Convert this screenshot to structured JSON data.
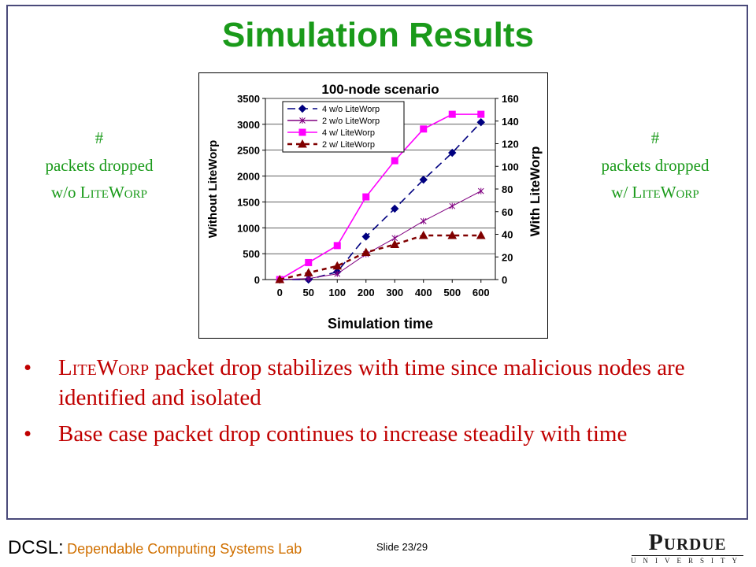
{
  "slide": {
    "title": "Simulation Results",
    "left_label": {
      "line1": "#",
      "line2": "packets dropped",
      "line3_prefix": "w/o ",
      "line3_sc": "LiteWorp"
    },
    "right_label": {
      "line1": "#",
      "line2": "packets dropped",
      "line3_prefix": "w/ ",
      "line3_sc": "LiteWorp"
    },
    "bullets": [
      {
        "sc": "LiteWorp",
        "text": " packet drop stabilizes with time since malicious nodes are identified and isolated"
      },
      {
        "sc": "",
        "text": "Base case packet drop continues to increase steadily with time"
      }
    ],
    "footer": {
      "abbr": "DCSL:",
      "full": "Dependable Computing Systems Lab",
      "slide_number": "Slide 23/29",
      "logo_word": "Purdue",
      "logo_sub": "UNIVERSITY"
    }
  },
  "chart_data": {
    "type": "line",
    "title": "100-node scenario",
    "xlabel": "Simulation time",
    "ylabel_left": "Without LiteWorp",
    "ylabel_right": "With LiteWorp",
    "categories": [
      "0",
      "50",
      "100",
      "200",
      "300",
      "400",
      "500",
      "600"
    ],
    "ylim_left": [
      0,
      3500
    ],
    "yticks_left": [
      0,
      500,
      1000,
      1500,
      2000,
      2500,
      3000,
      3500
    ],
    "ylim_right": [
      0,
      160
    ],
    "yticks_right": [
      0,
      20,
      40,
      60,
      80,
      100,
      120,
      140,
      160
    ],
    "grid": true,
    "legend_position": "top-left",
    "series": [
      {
        "name": "4 w/o LiteWorp",
        "axis": "left",
        "color": "#000080",
        "dash": "10,6",
        "marker": "diamond",
        "values": [
          0,
          0,
          150,
          830,
          1370,
          1930,
          2450,
          3040
        ]
      },
      {
        "name": "2 w/o LiteWorp",
        "axis": "left",
        "color": "#800080",
        "dash": "",
        "marker": "star",
        "values": [
          0,
          20,
          110,
          490,
          800,
          1130,
          1420,
          1710
        ]
      },
      {
        "name": "4 w/ LiteWorp",
        "axis": "right",
        "color": "#ff00ff",
        "dash": "",
        "marker": "square",
        "values": [
          0,
          15,
          30,
          73,
          105,
          133,
          146,
          146
        ]
      },
      {
        "name": "2 w/ LiteWorp",
        "axis": "right",
        "color": "#800000",
        "dash": "6,5",
        "marker": "triangle",
        "values": [
          0,
          6,
          12,
          24,
          31,
          39,
          39,
          39
        ]
      }
    ]
  }
}
